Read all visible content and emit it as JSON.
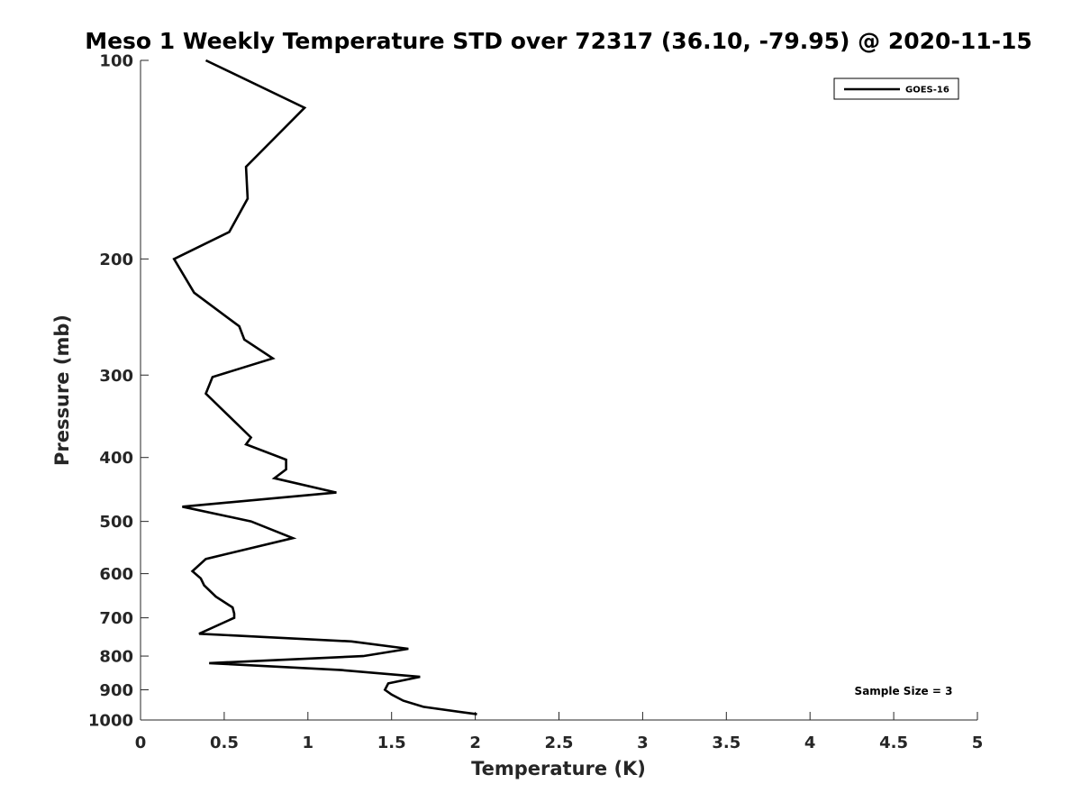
{
  "chart_data": {
    "type": "line",
    "title": "Meso 1 Weekly Temperature STD over 72317 (36.10, -79.95) @ 2020-11-15",
    "xlabel": "Temperature (K)",
    "ylabel": "Pressure (mb)",
    "xlim": [
      0,
      5
    ],
    "ylim": [
      100,
      1000
    ],
    "y_scale": "log",
    "y_reversed": true,
    "grid": false,
    "legend_position": "top-right",
    "x_ticks": [
      "0",
      "0.5",
      "1",
      "1.5",
      "2",
      "2.5",
      "3",
      "3.5",
      "4",
      "4.5",
      "5"
    ],
    "y_ticks": [
      "100",
      "200",
      "300",
      "400",
      "500",
      "600",
      "700",
      "800",
      "900",
      "1000"
    ],
    "annotation": "Sample Size = 3",
    "series": [
      {
        "name": "GOES-16",
        "color": "#000000",
        "points": [
          [
            0.39,
            100.0
          ],
          [
            0.98,
            118.0
          ],
          [
            0.63,
            145.0
          ],
          [
            0.64,
            162.0
          ],
          [
            0.53,
            182.0
          ],
          [
            0.2,
            200.0
          ],
          [
            0.32,
            225.0
          ],
          [
            0.59,
            253.0
          ],
          [
            0.62,
            265.0
          ],
          [
            0.79,
            283.0
          ],
          [
            0.43,
            302.0
          ],
          [
            0.39,
            320.0
          ],
          [
            0.66,
            373.0
          ],
          [
            0.63,
            382.0
          ],
          [
            0.87,
            403.0
          ],
          [
            0.87,
            417.0
          ],
          [
            0.8,
            430.0
          ],
          [
            1.17,
            452.0
          ],
          [
            0.25,
            475.0
          ],
          [
            0.66,
            500.0
          ],
          [
            0.91,
            530.0
          ],
          [
            0.39,
            570.0
          ],
          [
            0.31,
            595.0
          ],
          [
            0.36,
            610.0
          ],
          [
            0.38,
            625.0
          ],
          [
            0.45,
            650.0
          ],
          [
            0.55,
            675.0
          ],
          [
            0.56,
            690.0
          ],
          [
            0.56,
            700.0
          ],
          [
            0.35,
            740.0
          ],
          [
            1.26,
            760.0
          ],
          [
            1.6,
            780.0
          ],
          [
            1.33,
            800.0
          ],
          [
            0.41,
            820.0
          ],
          [
            1.2,
            840.0
          ],
          [
            1.67,
            860.0
          ],
          [
            1.48,
            880.0
          ],
          [
            1.46,
            900.0
          ],
          [
            1.5,
            915.0
          ],
          [
            1.57,
            935.0
          ],
          [
            1.69,
            955.0
          ],
          [
            2.01,
            980.0
          ]
        ]
      }
    ]
  }
}
